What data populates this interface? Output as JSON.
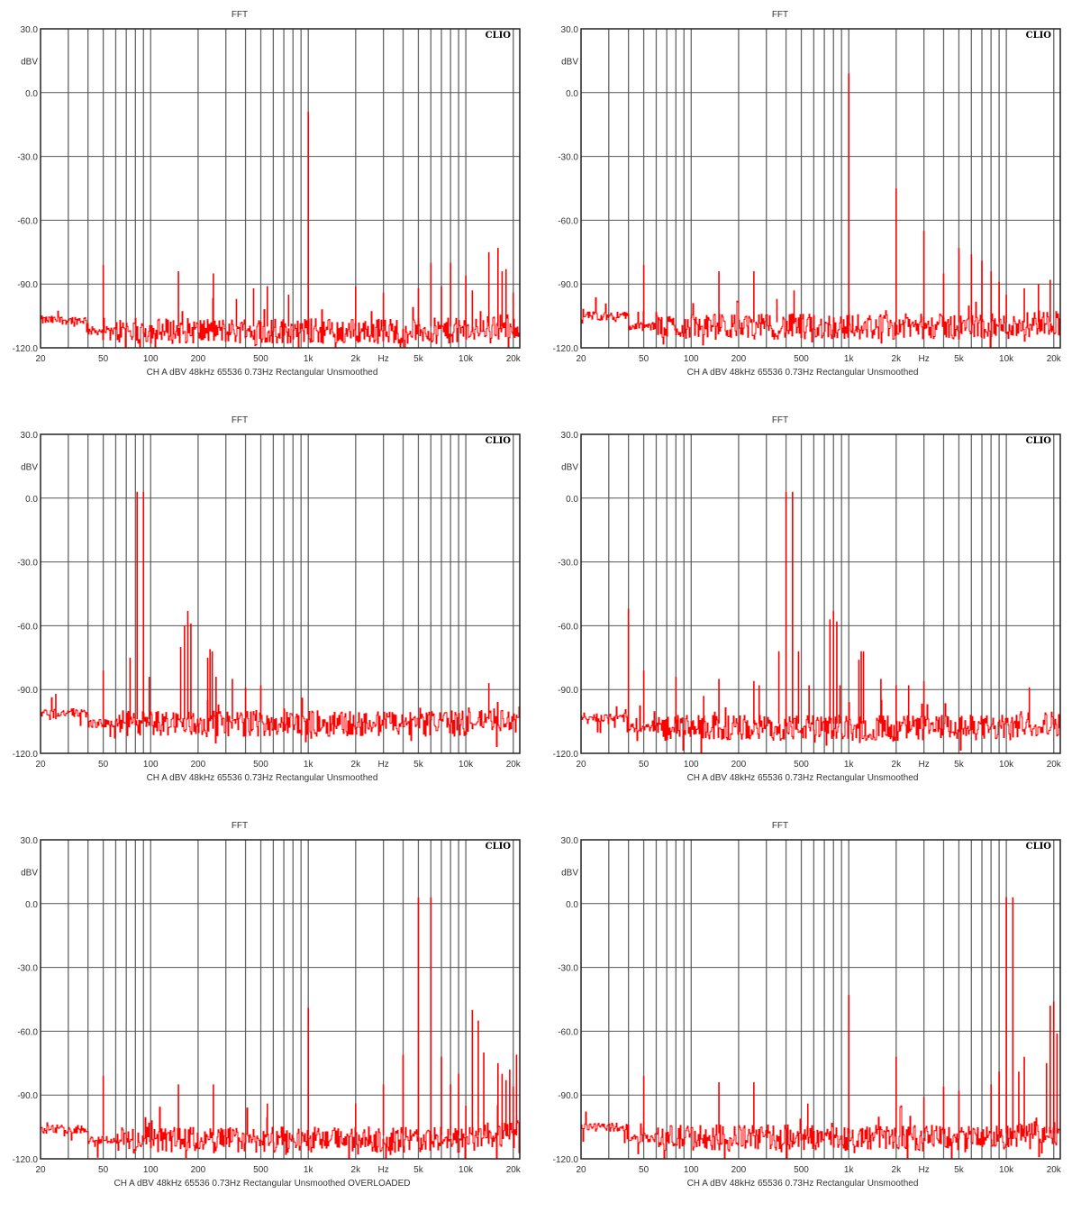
{
  "chart_data": [
    {
      "type": "line",
      "title": "FFT",
      "ylabel": "dBV",
      "xlabel": "Hz",
      "logo": "CLIO",
      "footer": "CH A   dBV   48kHz   65536   0.73Hz   Rectangular   Unsmoothed",
      "x_scale": "log",
      "xlim": [
        20,
        22000
      ],
      "ylim": [
        -120,
        30
      ],
      "grid": true,
      "color": "#ff0000",
      "y_ticks": [
        "30.0",
        "0.0",
        "-30.0",
        "-60.0",
        "-90.0",
        "-120.0"
      ],
      "x_ticks": [
        {
          "f": 20,
          "label": "20"
        },
        {
          "f": 50,
          "label": "50"
        },
        {
          "f": 100,
          "label": "100"
        },
        {
          "f": 200,
          "label": "200"
        },
        {
          "f": 500,
          "label": "500"
        },
        {
          "f": 1000,
          "label": "1k"
        },
        {
          "f": 2000,
          "label": "2k"
        },
        {
          "f": 3000,
          "label": "Hz"
        },
        {
          "f": 5000,
          "label": "5k"
        },
        {
          "f": 10000,
          "label": "10k"
        },
        {
          "f": 20000,
          "label": "20k"
        }
      ],
      "noise_floor_dbv": -112,
      "peaks": [
        [
          50,
          -81
        ],
        [
          150,
          -84
        ],
        [
          250,
          -85
        ],
        [
          350,
          -97
        ],
        [
          450,
          -92
        ],
        [
          550,
          -91
        ],
        [
          750,
          -95
        ],
        [
          1000,
          -9
        ],
        [
          2000,
          -91
        ],
        [
          3000,
          -94
        ],
        [
          5000,
          -92
        ],
        [
          6000,
          -80
        ],
        [
          7000,
          -91
        ],
        [
          8000,
          -80
        ],
        [
          10000,
          -86
        ],
        [
          11000,
          -93
        ],
        [
          14000,
          -75
        ],
        [
          16000,
          -73
        ],
        [
          17000,
          -84
        ],
        [
          18000,
          -83
        ],
        [
          20000,
          -94
        ]
      ]
    },
    {
      "type": "line",
      "title": "FFT",
      "ylabel": "dBV",
      "xlabel": "Hz",
      "logo": "CLIO",
      "footer": "CH A   dBV   48kHz   65536   0.73Hz   Rectangular   Unsmoothed",
      "x_scale": "log",
      "xlim": [
        20,
        22000
      ],
      "ylim": [
        -120,
        30
      ],
      "grid": true,
      "color": "#ff0000",
      "y_ticks": [
        "30.0",
        "0.0",
        "-30.0",
        "-60.0",
        "-90.0",
        "-120.0"
      ],
      "x_ticks": [
        {
          "f": 20,
          "label": "20"
        },
        {
          "f": 50,
          "label": "50"
        },
        {
          "f": 100,
          "label": "100"
        },
        {
          "f": 200,
          "label": "200"
        },
        {
          "f": 500,
          "label": "500"
        },
        {
          "f": 1000,
          "label": "1k"
        },
        {
          "f": 2000,
          "label": "2k"
        },
        {
          "f": 3000,
          "label": "Hz"
        },
        {
          "f": 5000,
          "label": "5k"
        },
        {
          "f": 10000,
          "label": "10k"
        },
        {
          "f": 20000,
          "label": "20k"
        }
      ],
      "noise_floor_dbv": -110,
      "peaks": [
        [
          50,
          -81
        ],
        [
          150,
          -84
        ],
        [
          250,
          -84
        ],
        [
          350,
          -97
        ],
        [
          450,
          -93
        ],
        [
          1000,
          9
        ],
        [
          2000,
          -45
        ],
        [
          3000,
          -65
        ],
        [
          4000,
          -85
        ],
        [
          5000,
          -73
        ],
        [
          6000,
          -76
        ],
        [
          7000,
          -79
        ],
        [
          8000,
          -84
        ],
        [
          9000,
          -89
        ],
        [
          10000,
          -95
        ],
        [
          13000,
          -92
        ],
        [
          16000,
          -90
        ],
        [
          19000,
          -88
        ]
      ]
    },
    {
      "type": "line",
      "title": "FFT",
      "ylabel": "dBV",
      "xlabel": "Hz",
      "logo": "CLIO",
      "footer": "CH A   dBV   48kHz   65536   0.73Hz   Rectangular   Unsmoothed",
      "x_scale": "log",
      "xlim": [
        20,
        22000
      ],
      "ylim": [
        -120,
        30
      ],
      "grid": true,
      "color": "#ff0000",
      "y_ticks": [
        "30.0",
        "0.0",
        "-30.0",
        "-60.0",
        "-90.0",
        "-120.0"
      ],
      "x_ticks": [
        {
          "f": 20,
          "label": "20"
        },
        {
          "f": 50,
          "label": "50"
        },
        {
          "f": 100,
          "label": "100"
        },
        {
          "f": 200,
          "label": "200"
        },
        {
          "f": 500,
          "label": "500"
        },
        {
          "f": 1000,
          "label": "1k"
        },
        {
          "f": 2000,
          "label": "2k"
        },
        {
          "f": 3000,
          "label": "Hz"
        },
        {
          "f": 5000,
          "label": "5k"
        },
        {
          "f": 10000,
          "label": "10k"
        },
        {
          "f": 20000,
          "label": "20k"
        }
      ],
      "noise_floor_dbv": -106,
      "peaks": [
        [
          25,
          -92
        ],
        [
          50,
          -81
        ],
        [
          74,
          -75
        ],
        [
          82,
          3
        ],
        [
          90,
          3
        ],
        [
          98,
          -84
        ],
        [
          155,
          -70
        ],
        [
          164,
          -60
        ],
        [
          172,
          -53
        ],
        [
          180,
          -59
        ],
        [
          230,
          -75
        ],
        [
          238,
          -71
        ],
        [
          246,
          -72
        ],
        [
          260,
          -84
        ],
        [
          330,
          -85
        ],
        [
          400,
          -89
        ],
        [
          500,
          -88
        ],
        [
          14000,
          -87
        ]
      ]
    },
    {
      "type": "line",
      "title": "FFT",
      "ylabel": "dBV",
      "xlabel": "Hz",
      "logo": "CLIO",
      "footer": "CH A   dBV   48kHz   65536   0.73Hz   Rectangular   Unsmoothed",
      "x_scale": "log",
      "xlim": [
        20,
        22000
      ],
      "ylim": [
        -120,
        30
      ],
      "grid": true,
      "color": "#ff0000",
      "y_ticks": [
        "30.0",
        "0.0",
        "-30.0",
        "-60.0",
        "-90.0",
        "-120.0"
      ],
      "x_ticks": [
        {
          "f": 20,
          "label": "20"
        },
        {
          "f": 50,
          "label": "50"
        },
        {
          "f": 100,
          "label": "100"
        },
        {
          "f": 200,
          "label": "200"
        },
        {
          "f": 500,
          "label": "500"
        },
        {
          "f": 1000,
          "label": "1k"
        },
        {
          "f": 2000,
          "label": "2k"
        },
        {
          "f": 3000,
          "label": "Hz"
        },
        {
          "f": 5000,
          "label": "5k"
        },
        {
          "f": 10000,
          "label": "10k"
        },
        {
          "f": 20000,
          "label": "20k"
        }
      ],
      "noise_floor_dbv": -108,
      "peaks": [
        [
          40,
          -52
        ],
        [
          50,
          -81
        ],
        [
          80,
          -84
        ],
        [
          120,
          -93
        ],
        [
          150,
          -85
        ],
        [
          250,
          -86
        ],
        [
          270,
          -88
        ],
        [
          360,
          -72
        ],
        [
          400,
          3
        ],
        [
          440,
          3
        ],
        [
          480,
          -72
        ],
        [
          560,
          -88
        ],
        [
          760,
          -57
        ],
        [
          800,
          -53
        ],
        [
          840,
          -58
        ],
        [
          880,
          -88
        ],
        [
          1160,
          -76
        ],
        [
          1200,
          -72
        ],
        [
          1240,
          -72
        ],
        [
          1600,
          -85
        ],
        [
          2000,
          -88
        ],
        [
          2400,
          -88
        ],
        [
          3000,
          -86
        ],
        [
          14000,
          -89
        ]
      ]
    },
    {
      "type": "line",
      "title": "FFT",
      "ylabel": "dBV",
      "xlabel": "Hz",
      "logo": "CLIO",
      "footer": "CH A   dBV   48kHz   65536   0.73Hz   Rectangular   Unsmoothed   OVERLOADED",
      "x_scale": "log",
      "xlim": [
        20,
        22000
      ],
      "ylim": [
        -120,
        30
      ],
      "grid": true,
      "color": "#ff0000",
      "y_ticks": [
        "30.0",
        "0.0",
        "-30.0",
        "-60.0",
        "-90.0",
        "-120.0"
      ],
      "x_ticks": [
        {
          "f": 20,
          "label": "20"
        },
        {
          "f": 50,
          "label": "50"
        },
        {
          "f": 100,
          "label": "100"
        },
        {
          "f": 200,
          "label": "200"
        },
        {
          "f": 500,
          "label": "500"
        },
        {
          "f": 1000,
          "label": "1k"
        },
        {
          "f": 2000,
          "label": "2k"
        },
        {
          "f": 3000,
          "label": "Hz"
        },
        {
          "f": 5000,
          "label": "5k"
        },
        {
          "f": 10000,
          "label": "10k"
        },
        {
          "f": 20000,
          "label": "20k"
        }
      ],
      "noise_floor_dbv": -111,
      "peaks": [
        [
          50,
          -81
        ],
        [
          150,
          -85
        ],
        [
          250,
          -85
        ],
        [
          550,
          -94
        ],
        [
          1000,
          -49
        ],
        [
          2000,
          -94
        ],
        [
          3000,
          -85
        ],
        [
          4000,
          -71
        ],
        [
          5000,
          3
        ],
        [
          6000,
          3
        ],
        [
          7000,
          -72
        ],
        [
          8000,
          -85
        ],
        [
          9000,
          -80
        ],
        [
          10000,
          -95
        ],
        [
          11000,
          -50
        ],
        [
          12000,
          -55
        ],
        [
          13000,
          -70
        ],
        [
          16000,
          -75
        ],
        [
          17000,
          -80
        ],
        [
          18000,
          -83
        ],
        [
          19000,
          -78
        ],
        [
          20000,
          -86
        ],
        [
          21000,
          -71
        ]
      ]
    },
    {
      "type": "line",
      "title": "FFT",
      "ylabel": "dBV",
      "xlabel": "Hz",
      "logo": "CLIO",
      "footer": "CH A   dBV   48kHz   65536   0.73Hz   Rectangular   Unsmoothed",
      "x_scale": "log",
      "xlim": [
        20,
        22000
      ],
      "ylim": [
        -120,
        30
      ],
      "grid": true,
      "color": "#ff0000",
      "y_ticks": [
        "30.0",
        "0.0",
        "-30.0",
        "-60.0",
        "-90.0",
        "-120.0"
      ],
      "x_ticks": [
        {
          "f": 20,
          "label": "20"
        },
        {
          "f": 50,
          "label": "50"
        },
        {
          "f": 100,
          "label": "100"
        },
        {
          "f": 200,
          "label": "200"
        },
        {
          "f": 500,
          "label": "500"
        },
        {
          "f": 1000,
          "label": "1k"
        },
        {
          "f": 2000,
          "label": "2k"
        },
        {
          "f": 3000,
          "label": "Hz"
        },
        {
          "f": 5000,
          "label": "5k"
        },
        {
          "f": 10000,
          "label": "10k"
        },
        {
          "f": 20000,
          "label": "20k"
        }
      ],
      "noise_floor_dbv": -110,
      "peaks": [
        [
          50,
          -81
        ],
        [
          150,
          -84
        ],
        [
          250,
          -84
        ],
        [
          550,
          -94
        ],
        [
          1000,
          -43
        ],
        [
          2000,
          -72
        ],
        [
          3000,
          -91
        ],
        [
          4000,
          -86
        ],
        [
          5000,
          -88
        ],
        [
          8000,
          -85
        ],
        [
          9000,
          -79
        ],
        [
          10000,
          3
        ],
        [
          11000,
          3
        ],
        [
          12000,
          -79
        ],
        [
          13000,
          -72
        ],
        [
          18000,
          -75
        ],
        [
          19000,
          -48
        ],
        [
          20000,
          -46
        ],
        [
          21000,
          -61
        ]
      ]
    }
  ]
}
